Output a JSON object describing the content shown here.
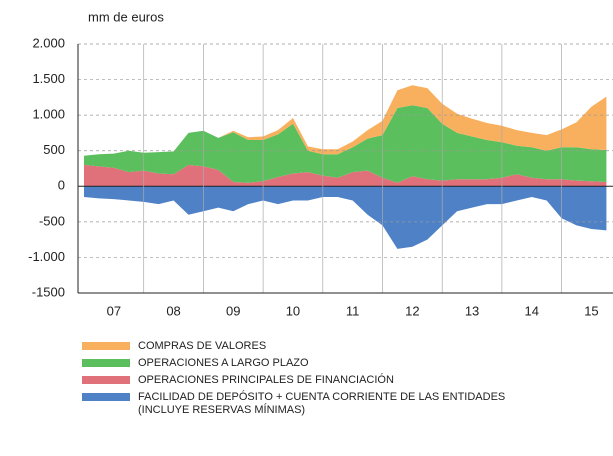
{
  "chart_data": {
    "type": "stacked-area",
    "subtitle": "mm de euros",
    "categories": [
      null,
      null,
      "07",
      null,
      null,
      null,
      "08",
      null,
      null,
      null,
      "09",
      null,
      null,
      null,
      "10",
      null,
      null,
      null,
      "11",
      null,
      null,
      null,
      "12",
      null,
      null,
      null,
      "13",
      null,
      null,
      null,
      "14",
      null,
      null,
      null,
      "15",
      null
    ],
    "series": [
      {
        "name": "COMPRAS DE VALORES",
        "color": "#f9b05e",
        "values": [
          0,
          0,
          0,
          0,
          0,
          0,
          0,
          0,
          0,
          0,
          20,
          40,
          50,
          60,
          80,
          60,
          70,
          70,
          80,
          120,
          200,
          250,
          280,
          280,
          280,
          270,
          250,
          240,
          230,
          220,
          200,
          220,
          250,
          350,
          600,
          750
        ]
      },
      {
        "name": "OPERACIONES A LARGO PLAZO",
        "color": "#5cbf5e",
        "values": [
          130,
          170,
          200,
          300,
          250,
          300,
          320,
          450,
          500,
          450,
          700,
          600,
          580,
          600,
          700,
          300,
          300,
          330,
          350,
          450,
          600,
          1050,
          1000,
          1000,
          800,
          650,
          600,
          550,
          500,
          400,
          430,
          400,
          450,
          470,
          450,
          450
        ]
      },
      {
        "name": "OPERACIONES PRINCIPALES DE FINANCIACIÓN",
        "color": "#e0707a",
        "values": [
          300,
          280,
          260,
          200,
          220,
          180,
          170,
          300,
          280,
          230,
          60,
          50,
          70,
          130,
          180,
          200,
          150,
          120,
          200,
          220,
          120,
          50,
          140,
          100,
          80,
          100,
          100,
          100,
          120,
          170,
          120,
          100,
          100,
          80,
          70,
          60
        ]
      },
      {
        "name": "FACILIDAD DE DEPÓSITO + CUENTA CORRIENTE DE LAS ENTIDADES (INCLUYE RESERVAS MÍNIMAS)",
        "color": "#4f81c7",
        "values": [
          -150,
          -170,
          -180,
          -200,
          -220,
          -250,
          -200,
          -400,
          -350,
          -300,
          -350,
          -250,
          -200,
          -250,
          -200,
          -200,
          -150,
          -150,
          -200,
          -400,
          -550,
          -880,
          -850,
          -750,
          -550,
          -350,
          -300,
          -250,
          -250,
          -200,
          -150,
          -200,
          -450,
          -550,
          -600,
          -620
        ]
      }
    ],
    "ylim": [
      -1500,
      2000
    ],
    "yticks": [
      -1500,
      {
        "value": -1000,
        "label": "-1.000"
      },
      -500,
      0,
      500,
      {
        "value": 1000,
        "label": "1.000"
      },
      {
        "value": 1500,
        "label": "1.500"
      },
      {
        "value": 2000,
        "label": "2.000"
      }
    ],
    "grid": true
  }
}
